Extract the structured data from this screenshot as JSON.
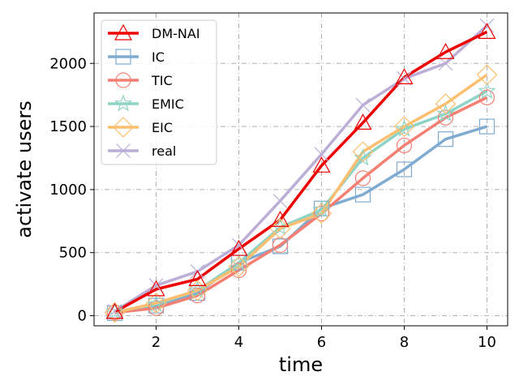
{
  "chart_data": {
    "type": "line",
    "title": "",
    "xlabel": "time",
    "ylabel": "activate users",
    "xlim": [
      0.5,
      10.5
    ],
    "ylim": [
      -80,
      2400
    ],
    "xticks": [
      2,
      4,
      6,
      8,
      10
    ],
    "yticks": [
      0,
      500,
      1000,
      1500,
      2000
    ],
    "grid": true,
    "legend_position": "top-left",
    "x": [
      1,
      2,
      3,
      4,
      5,
      6,
      7,
      8,
      9,
      10
    ],
    "series": [
      {
        "name": "DM-NAI",
        "color": "#ee0000",
        "marker": "triangle",
        "values": [
          30,
          210,
          290,
          530,
          760,
          1190,
          1530,
          1890,
          2090,
          2250
        ]
      },
      {
        "name": "IC",
        "color": "#7fabd1",
        "marker": "square",
        "values": [
          20,
          80,
          180,
          420,
          550,
          850,
          960,
          1160,
          1400,
          1500
        ]
      },
      {
        "name": "TIC",
        "color": "#f47f72",
        "marker": "circle",
        "values": [
          25,
          60,
          160,
          360,
          560,
          810,
          1090,
          1350,
          1570,
          1730
        ]
      },
      {
        "name": "EMIC",
        "color": "#8dd3c6",
        "marker": "star",
        "values": [
          30,
          90,
          200,
          420,
          700,
          840,
          1250,
          1480,
          1600,
          1780
        ]
      },
      {
        "name": "EIC",
        "color": "#fdbf6f",
        "marker": "diamond",
        "values": [
          25,
          100,
          200,
          390,
          690,
          810,
          1300,
          1500,
          1680,
          1910
        ]
      },
      {
        "name": "real",
        "color": "#bcaed6",
        "marker": "x",
        "values": [
          35,
          240,
          350,
          560,
          910,
          1280,
          1670,
          1880,
          2000,
          2300
        ]
      }
    ]
  }
}
